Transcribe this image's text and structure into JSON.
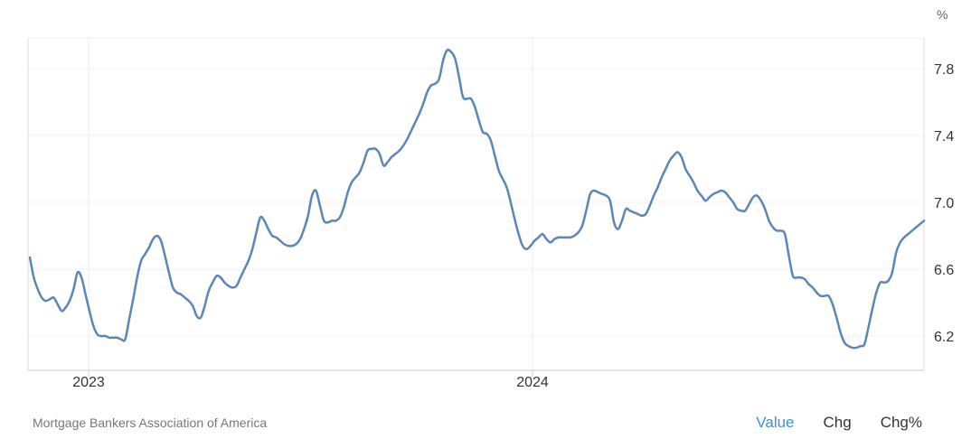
{
  "chart_data": {
    "type": "line",
    "unit": "%",
    "x_tick_labels": [
      "2023",
      "2024"
    ],
    "y_ticks": [
      6.2,
      6.6,
      7.0,
      7.4,
      7.8
    ],
    "ylim": [
      6.0,
      8.0
    ],
    "grid": true,
    "line_color": "#5b87b8",
    "series": [
      {
        "values": [
          6.67,
          6.55,
          6.48,
          6.43,
          6.41,
          6.42,
          6.43,
          6.39,
          6.35,
          6.37,
          6.41,
          6.48,
          6.58,
          6.55,
          6.45,
          6.35,
          6.26,
          6.21,
          6.2,
          6.2,
          6.19,
          6.19,
          6.19,
          6.18,
          6.18,
          6.3,
          6.42,
          6.55,
          6.65,
          6.69,
          6.73,
          6.78,
          6.8,
          6.77,
          6.68,
          6.58,
          6.49,
          6.46,
          6.45,
          6.43,
          6.41,
          6.38,
          6.32,
          6.31,
          6.38,
          6.47,
          6.52,
          6.56,
          6.55,
          6.52,
          6.5,
          6.49,
          6.5,
          6.55,
          6.6,
          6.65,
          6.72,
          6.82,
          6.91,
          6.89,
          6.84,
          6.8,
          6.79,
          6.77,
          6.75,
          6.74,
          6.74,
          6.75,
          6.78,
          6.84,
          6.92,
          7.04,
          7.07,
          6.98,
          6.89,
          6.88,
          6.89,
          6.89,
          6.91,
          6.97,
          7.06,
          7.12,
          7.15,
          7.18,
          7.24,
          7.31,
          7.32,
          7.32,
          7.29,
          7.22,
          7.24,
          7.27,
          7.29,
          7.31,
          7.34,
          7.38,
          7.43,
          7.48,
          7.53,
          7.59,
          7.66,
          7.7,
          7.71,
          7.74,
          7.85,
          7.91,
          7.9,
          7.86,
          7.75,
          7.63,
          7.62,
          7.62,
          7.57,
          7.49,
          7.42,
          7.41,
          7.37,
          7.28,
          7.19,
          7.14,
          7.09,
          7.0,
          6.9,
          6.81,
          6.74,
          6.72,
          6.74,
          6.77,
          6.79,
          6.81,
          6.78,
          6.76,
          6.78,
          6.79,
          6.79,
          6.79,
          6.79,
          6.8,
          6.82,
          6.86,
          6.95,
          7.05,
          7.07,
          7.06,
          7.05,
          7.04,
          7.01,
          6.88,
          6.84,
          6.89,
          6.96,
          6.95,
          6.94,
          6.93,
          6.92,
          6.93,
          6.98,
          7.04,
          7.09,
          7.15,
          7.2,
          7.25,
          7.28,
          7.3,
          7.27,
          7.2,
          7.16,
          7.12,
          7.07,
          7.04,
          7.01,
          7.03,
          7.05,
          7.06,
          7.07,
          7.06,
          7.03,
          7.0,
          6.96,
          6.95,
          6.95,
          6.99,
          7.03,
          7.04,
          7.01,
          6.96,
          6.89,
          6.85,
          6.83,
          6.83,
          6.81,
          6.68,
          6.56,
          6.55,
          6.55,
          6.54,
          6.51,
          6.49,
          6.46,
          6.44,
          6.44,
          6.44,
          6.39,
          6.31,
          6.22,
          6.16,
          6.14,
          6.13,
          6.13,
          6.14,
          6.15,
          6.25,
          6.36,
          6.46,
          6.52,
          6.52,
          6.53,
          6.58,
          6.7,
          6.76,
          6.79,
          6.81,
          6.83,
          6.85,
          6.87,
          6.89
        ]
      }
    ]
  },
  "footer": {
    "source": "Mortgage Bankers Association of America",
    "modes": [
      "Value",
      "Chg",
      "Chg%"
    ],
    "active_mode": "Value"
  }
}
